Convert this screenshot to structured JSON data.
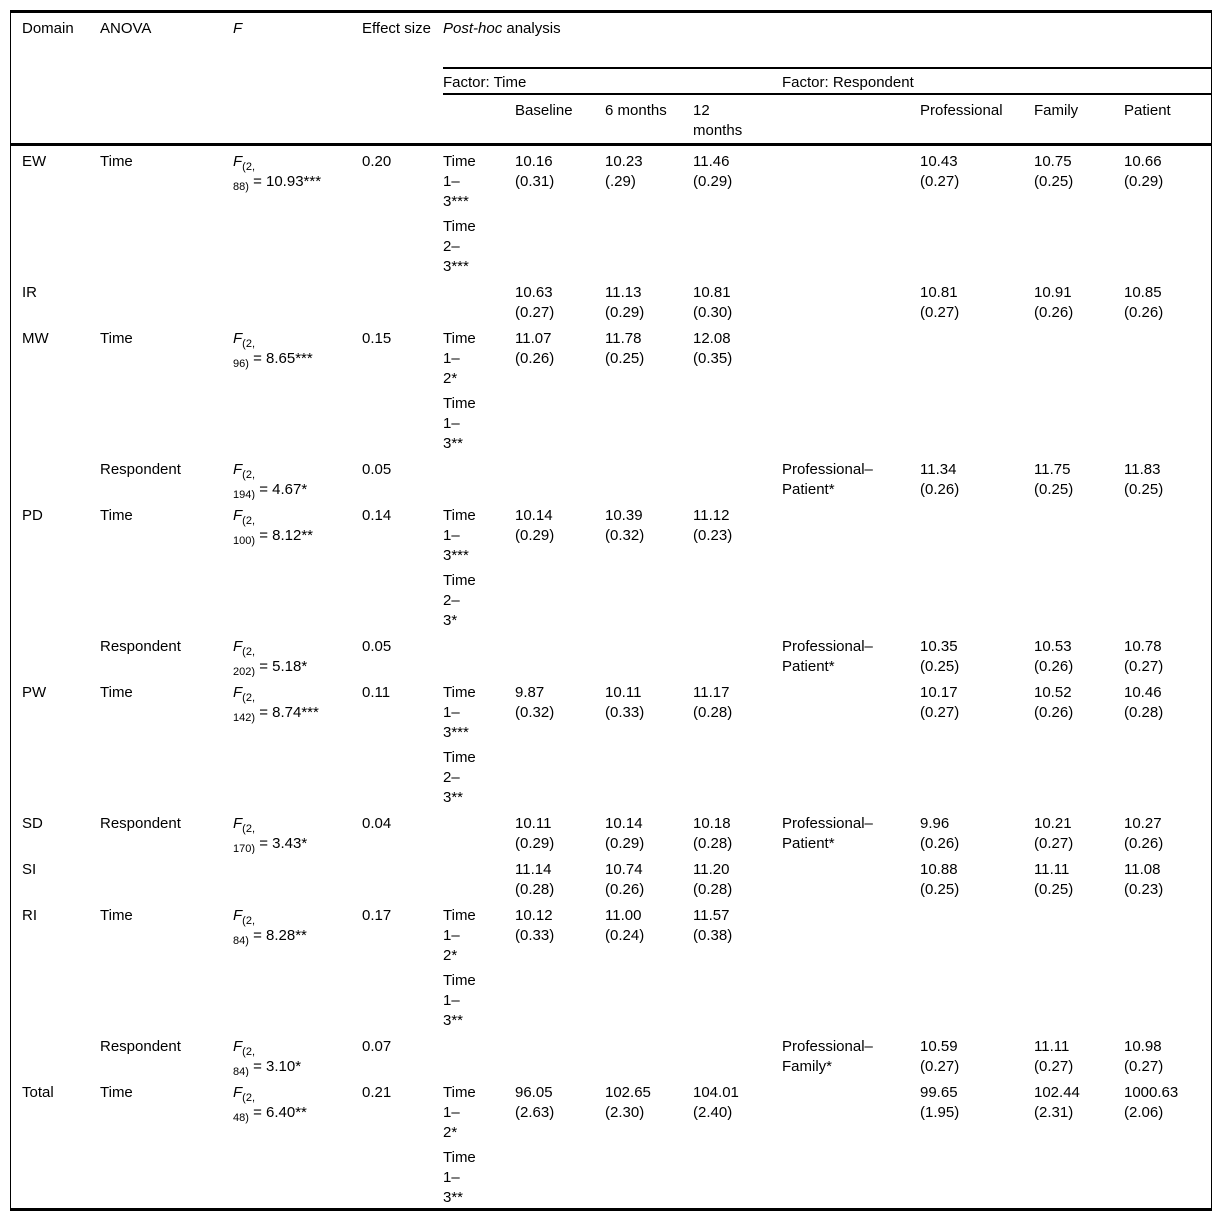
{
  "colors": {
    "text": "#000000",
    "background": "#ffffff",
    "rule": "#000000"
  },
  "header": {
    "domain": "Domain",
    "anova": "ANOVA",
    "f_label": "F",
    "effect_size": "Effect size",
    "post_hoc_italic": "Post-hoc",
    "post_hoc_rest": " analysis",
    "factor_time": "Factor: Time",
    "factor_respondent": "Factor: Respondent",
    "time_columns": [
      "Baseline",
      "6 months",
      "12\nmonths"
    ],
    "respondent_columns": [
      "Professional",
      "Family",
      "Patient"
    ]
  },
  "rows": [
    {
      "domain": "EW",
      "anova": "Time",
      "f": {
        "sym": "F",
        "sub1": "(2,",
        "sub2": "88)",
        "val": "= 10.93***"
      },
      "effect": "0.20",
      "time_contrasts": [
        "Time\n1–\n3***",
        "Time\n2–\n3***"
      ],
      "time_values": [
        "10.16\n(0.31)",
        "10.23\n(.29)",
        "11.46\n(0.29)"
      ],
      "resp_contrast": "",
      "resp_values": [
        "10.43\n(0.27)",
        "10.75\n(0.25)",
        "10.66\n(0.29)"
      ]
    },
    {
      "domain": "IR",
      "anova": "",
      "f": null,
      "effect": "",
      "time_contrasts": [],
      "time_values": [
        "10.63\n(0.27)",
        "11.13\n(0.29)",
        "10.81\n(0.30)"
      ],
      "resp_contrast": "",
      "resp_values": [
        "10.81\n(0.27)",
        "10.91\n(0.26)",
        "10.85\n(0.26)"
      ]
    },
    {
      "domain": "MW",
      "anova": "Time",
      "f": {
        "sym": "F",
        "sub1": "(2,",
        "sub2": "96)",
        "val": "= 8.65***"
      },
      "effect": "0.15",
      "time_contrasts": [
        "Time\n1–\n2*",
        "Time\n1–\n3**"
      ],
      "time_values": [
        "11.07\n(0.26)",
        "11.78\n(0.25)",
        "12.08\n(0.35)"
      ],
      "resp_contrast": "",
      "resp_values": [
        "",
        "",
        ""
      ]
    },
    {
      "domain": "",
      "anova": "Respondent",
      "f": {
        "sym": "F",
        "sub1": "(2,",
        "sub2": "194)",
        "val": "= 4.67*"
      },
      "effect": "0.05",
      "time_contrasts": [],
      "time_values": [
        "",
        "",
        ""
      ],
      "resp_contrast": "Professional–\nPatient*",
      "resp_values": [
        "11.34\n(0.26)",
        "11.75\n(0.25)",
        "11.83\n(0.25)"
      ]
    },
    {
      "domain": "PD",
      "anova": "Time",
      "f": {
        "sym": "F",
        "sub1": "(2,",
        "sub2": "100)",
        "val": "= 8.12**"
      },
      "effect": "0.14",
      "time_contrasts": [
        "Time\n1–\n3***",
        "Time\n2–\n3*"
      ],
      "time_values": [
        "10.14\n(0.29)",
        "10.39\n(0.32)",
        "11.12\n(0.23)"
      ],
      "resp_contrast": "",
      "resp_values": [
        "",
        "",
        ""
      ]
    },
    {
      "domain": "",
      "anova": "Respondent",
      "f": {
        "sym": "F",
        "sub1": "(2,",
        "sub2": "202)",
        "val": "= 5.18*"
      },
      "effect": "0.05",
      "time_contrasts": [],
      "time_values": [
        "",
        "",
        ""
      ],
      "resp_contrast": "Professional–\nPatient*",
      "resp_values": [
        "10.35\n(0.25)",
        "10.53\n(0.26)",
        "10.78\n(0.27)"
      ]
    },
    {
      "domain": "PW",
      "anova": "Time",
      "f": {
        "sym": "F",
        "sub1": "(2,",
        "sub2": "142)",
        "val": "= 8.74***"
      },
      "effect": "0.11",
      "time_contrasts": [
        "Time\n1–\n3***",
        "Time\n2–\n3**"
      ],
      "time_values": [
        "9.87\n(0.32)",
        "10.11\n(0.33)",
        "11.17\n(0.28)"
      ],
      "resp_contrast": "",
      "resp_values": [
        "10.17\n(0.27)",
        "10.52\n(0.26)",
        "10.46\n(0.28)"
      ]
    },
    {
      "domain": "SD",
      "anova": "Respondent",
      "f": {
        "sym": "F",
        "sub1": "(2,",
        "sub2": "170)",
        "val": "= 3.43*"
      },
      "effect": "0.04",
      "time_contrasts": [],
      "time_values": [
        "10.11\n(0.29)",
        "10.14\n(0.29)",
        "10.18\n(0.28)"
      ],
      "resp_contrast": "Professional–\nPatient*",
      "resp_values": [
        "9.96\n(0.26)",
        "10.21\n(0.27)",
        "10.27\n(0.26)"
      ]
    },
    {
      "domain": "SI",
      "anova": "",
      "f": null,
      "effect": "",
      "time_contrasts": [],
      "time_values": [
        "11.14\n(0.28)",
        "10.74\n(0.26)",
        "11.20\n(0.28)"
      ],
      "resp_contrast": "",
      "resp_values": [
        "10.88\n(0.25)",
        "11.11\n(0.25)",
        "11.08\n(0.23)"
      ]
    },
    {
      "domain": "RI",
      "anova": "Time",
      "f": {
        "sym": "F",
        "sub1": "(2,",
        "sub2": "84)",
        "val": "= 8.28**"
      },
      "effect": "0.17",
      "time_contrasts": [
        "Time\n1–\n2*",
        "Time\n1–\n3**"
      ],
      "time_values": [
        "10.12\n(0.33)",
        "11.00\n(0.24)",
        "11.57\n(0.38)"
      ],
      "resp_contrast": "",
      "resp_values": [
        "",
        "",
        ""
      ]
    },
    {
      "domain": "",
      "anova": "Respondent",
      "f": {
        "sym": "F",
        "sub1": "(2,",
        "sub2": "84)",
        "val": "= 3.10*"
      },
      "effect": "0.07",
      "time_contrasts": [],
      "time_values": [
        "",
        "",
        ""
      ],
      "resp_contrast": "Professional–\nFamily*",
      "resp_values": [
        "10.59\n(0.27)",
        "11.11\n(0.27)",
        "10.98\n(0.27)"
      ]
    },
    {
      "domain": "Total",
      "anova": "Time",
      "f": {
        "sym": "F",
        "sub1": "(2,",
        "sub2": "48)",
        "val": "= 6.40**"
      },
      "effect": "0.21",
      "time_contrasts": [
        "Time\n1–\n2*",
        "Time\n1–\n3**"
      ],
      "time_values": [
        "96.05\n(2.63)",
        "102.65\n(2.30)",
        "104.01\n(2.40)"
      ],
      "resp_contrast": "",
      "resp_values": [
        "99.65\n(1.95)",
        "102.44\n(2.31)",
        "1000.63\n(2.06)"
      ]
    }
  ]
}
